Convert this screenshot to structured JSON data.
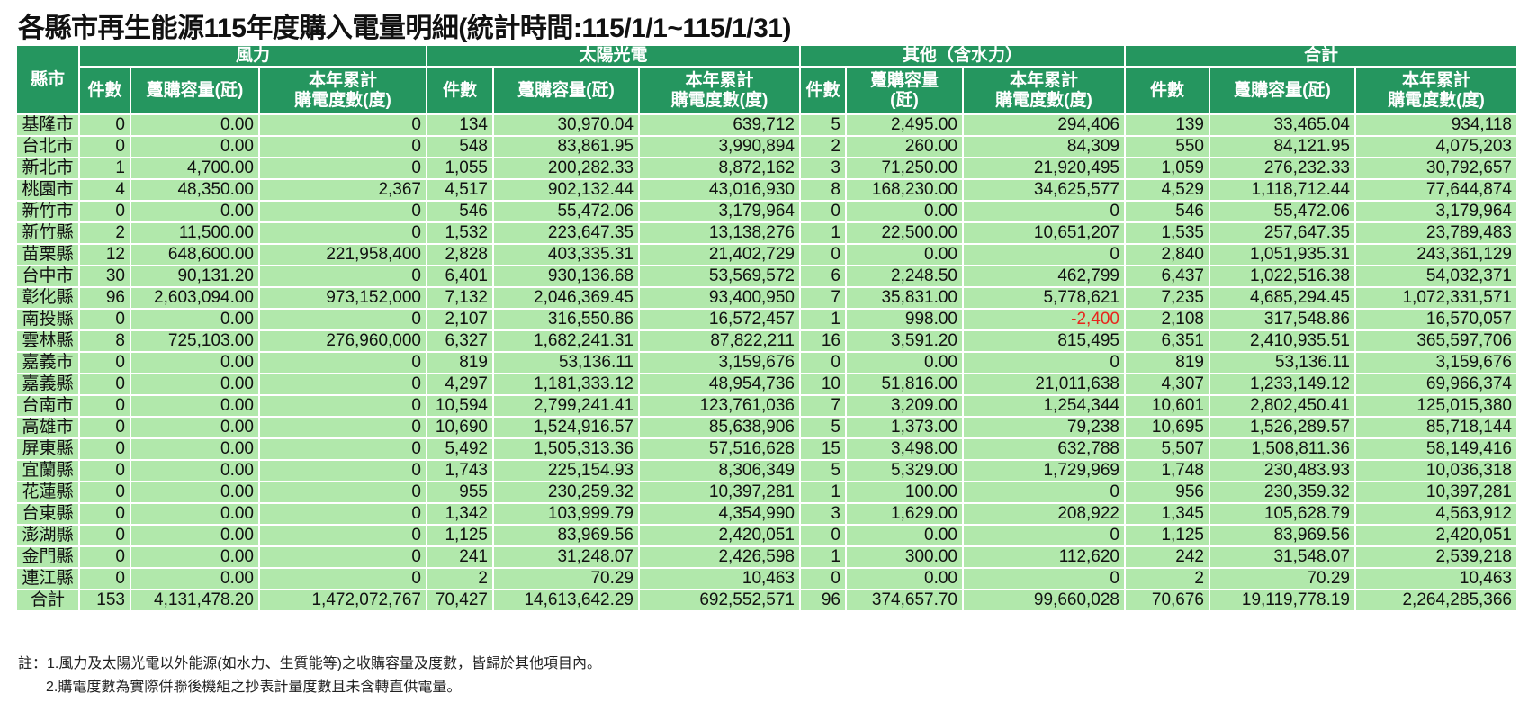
{
  "title": "各縣市再生能源115年度購入電量明細(統計時間:115/1/1~115/1/31)",
  "header": {
    "city": "縣市",
    "groups": [
      "風力",
      "太陽光電",
      "其他（含水力）",
      "合計"
    ],
    "count": "件數",
    "capacity": "躉購容量(瓩)",
    "capacity_other_1": "躉購容量",
    "capacity_other_2": "(瓩)",
    "energy_1": "本年累計",
    "energy_2": "購電度數(度)"
  },
  "colors": {
    "header_bg": "#25965f",
    "cell_bg": "#b1e8ab",
    "negative": "#e8251c"
  },
  "rows": [
    [
      "基隆市",
      "0",
      "0.00",
      "0",
      "134",
      "30,970.04",
      "639,712",
      "5",
      "2,495.00",
      "294,406",
      "139",
      "33,465.04",
      "934,118"
    ],
    [
      "台北市",
      "0",
      "0.00",
      "0",
      "548",
      "83,861.95",
      "3,990,894",
      "2",
      "260.00",
      "84,309",
      "550",
      "84,121.95",
      "4,075,203"
    ],
    [
      "新北市",
      "1",
      "4,700.00",
      "0",
      "1,055",
      "200,282.33",
      "8,872,162",
      "3",
      "71,250.00",
      "21,920,495",
      "1,059",
      "276,232.33",
      "30,792,657"
    ],
    [
      "桃園市",
      "4",
      "48,350.00",
      "2,367",
      "4,517",
      "902,132.44",
      "43,016,930",
      "8",
      "168,230.00",
      "34,625,577",
      "4,529",
      "1,118,712.44",
      "77,644,874"
    ],
    [
      "新竹市",
      "0",
      "0.00",
      "0",
      "546",
      "55,472.06",
      "3,179,964",
      "0",
      "0.00",
      "0",
      "546",
      "55,472.06",
      "3,179,964"
    ],
    [
      "新竹縣",
      "2",
      "11,500.00",
      "0",
      "1,532",
      "223,647.35",
      "13,138,276",
      "1",
      "22,500.00",
      "10,651,207",
      "1,535",
      "257,647.35",
      "23,789,483"
    ],
    [
      "苗栗縣",
      "12",
      "648,600.00",
      "221,958,400",
      "2,828",
      "403,335.31",
      "21,402,729",
      "0",
      "0.00",
      "0",
      "2,840",
      "1,051,935.31",
      "243,361,129"
    ],
    [
      "台中市",
      "30",
      "90,131.20",
      "0",
      "6,401",
      "930,136.68",
      "53,569,572",
      "6",
      "2,248.50",
      "462,799",
      "6,437",
      "1,022,516.38",
      "54,032,371"
    ],
    [
      "彰化縣",
      "96",
      "2,603,094.00",
      "973,152,000",
      "7,132",
      "2,046,369.45",
      "93,400,950",
      "7",
      "35,831.00",
      "5,778,621",
      "7,235",
      "4,685,294.45",
      "1,072,331,571"
    ],
    [
      "南投縣",
      "0",
      "0.00",
      "0",
      "2,107",
      "316,550.86",
      "16,572,457",
      "1",
      "998.00",
      "-2,400",
      "2,108",
      "317,548.86",
      "16,570,057"
    ],
    [
      "雲林縣",
      "8",
      "725,103.00",
      "276,960,000",
      "6,327",
      "1,682,241.31",
      "87,822,211",
      "16",
      "3,591.20",
      "815,495",
      "6,351",
      "2,410,935.51",
      "365,597,706"
    ],
    [
      "嘉義市",
      "0",
      "0.00",
      "0",
      "819",
      "53,136.11",
      "3,159,676",
      "0",
      "0.00",
      "0",
      "819",
      "53,136.11",
      "3,159,676"
    ],
    [
      "嘉義縣",
      "0",
      "0.00",
      "0",
      "4,297",
      "1,181,333.12",
      "48,954,736",
      "10",
      "51,816.00",
      "21,011,638",
      "4,307",
      "1,233,149.12",
      "69,966,374"
    ],
    [
      "台南市",
      "0",
      "0.00",
      "0",
      "10,594",
      "2,799,241.41",
      "123,761,036",
      "7",
      "3,209.00",
      "1,254,344",
      "10,601",
      "2,802,450.41",
      "125,015,380"
    ],
    [
      "高雄市",
      "0",
      "0.00",
      "0",
      "10,690",
      "1,524,916.57",
      "85,638,906",
      "5",
      "1,373.00",
      "79,238",
      "10,695",
      "1,526,289.57",
      "85,718,144"
    ],
    [
      "屏東縣",
      "0",
      "0.00",
      "0",
      "5,492",
      "1,505,313.36",
      "57,516,628",
      "15",
      "3,498.00",
      "632,788",
      "5,507",
      "1,508,811.36",
      "58,149,416"
    ],
    [
      "宜蘭縣",
      "0",
      "0.00",
      "0",
      "1,743",
      "225,154.93",
      "8,306,349",
      "5",
      "5,329.00",
      "1,729,969",
      "1,748",
      "230,483.93",
      "10,036,318"
    ],
    [
      "花蓮縣",
      "0",
      "0.00",
      "0",
      "955",
      "230,259.32",
      "10,397,281",
      "1",
      "100.00",
      "0",
      "956",
      "230,359.32",
      "10,397,281"
    ],
    [
      "台東縣",
      "0",
      "0.00",
      "0",
      "1,342",
      "103,999.79",
      "4,354,990",
      "3",
      "1,629.00",
      "208,922",
      "1,345",
      "105,628.79",
      "4,563,912"
    ],
    [
      "澎湖縣",
      "0",
      "0.00",
      "0",
      "1,125",
      "83,969.56",
      "2,420,051",
      "0",
      "0.00",
      "0",
      "1,125",
      "83,969.56",
      "2,420,051"
    ],
    [
      "金門縣",
      "0",
      "0.00",
      "0",
      "241",
      "31,248.07",
      "2,426,598",
      "1",
      "300.00",
      "112,620",
      "242",
      "31,548.07",
      "2,539,218"
    ],
    [
      "連江縣",
      "0",
      "0.00",
      "0",
      "2",
      "70.29",
      "10,463",
      "0",
      "0.00",
      "0",
      "2",
      "70.29",
      "10,463"
    ],
    [
      "合計",
      "153",
      "4,131,478.20",
      "1,472,072,767",
      "70,427",
      "14,613,642.29",
      "692,552,571",
      "96",
      "374,657.70",
      "99,660,028",
      "70,676",
      "19,119,778.19",
      "2,264,285,366"
    ]
  ],
  "notes": [
    "註：1.風力及太陽光電以外能源(如水力、生質能等)之收購容量及度數，皆歸於其他項目內。",
    "2.購電度數為實際併聯後機組之抄表計量度數且未含轉直供電量。"
  ]
}
